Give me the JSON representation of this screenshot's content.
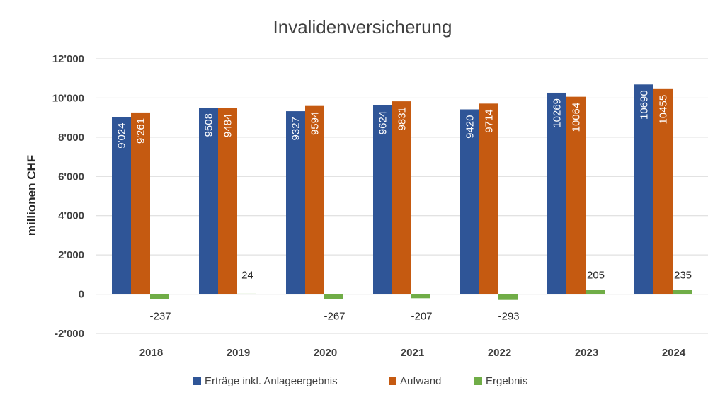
{
  "chart_data": {
    "type": "bar",
    "title": "Invalidenversicherung",
    "ylabel": "millionen CHF",
    "xlabel": "",
    "categories": [
      "2018",
      "2019",
      "2020",
      "2021",
      "2022",
      "2023",
      "2024"
    ],
    "ylim": [
      -2000,
      12000
    ],
    "yticks": [
      -2000,
      0,
      2000,
      4000,
      6000,
      8000,
      10000,
      12000
    ],
    "ytick_labels": [
      "-2'000",
      "0",
      "2'000",
      "4'000",
      "6'000",
      "8'000",
      "10'000",
      "12'000"
    ],
    "grid": true,
    "legend_position": "bottom",
    "series": [
      {
        "name": "Erträge inkl. Anlageergebnis",
        "color": "#2f5597",
        "values": [
          9024,
          9508,
          9327,
          9624,
          9420,
          10269,
          10690
        ],
        "labels": [
          "9'024",
          "9508",
          "9327",
          "9624",
          "9420",
          "10269",
          "10690"
        ]
      },
      {
        "name": "Aufwand",
        "color": "#c55a11",
        "values": [
          9261,
          9484,
          9594,
          9831,
          9714,
          10064,
          10455
        ],
        "labels": [
          "9'261",
          "9484",
          "9594",
          "9831",
          "9714",
          "10064",
          "10455"
        ]
      },
      {
        "name": "Ergebnis",
        "color": "#70ad47",
        "values": [
          -237,
          24,
          -267,
          -207,
          -293,
          205,
          235
        ],
        "labels": [
          "-237",
          "24",
          "-267",
          "-207",
          "-293",
          "205",
          "235"
        ]
      }
    ]
  }
}
